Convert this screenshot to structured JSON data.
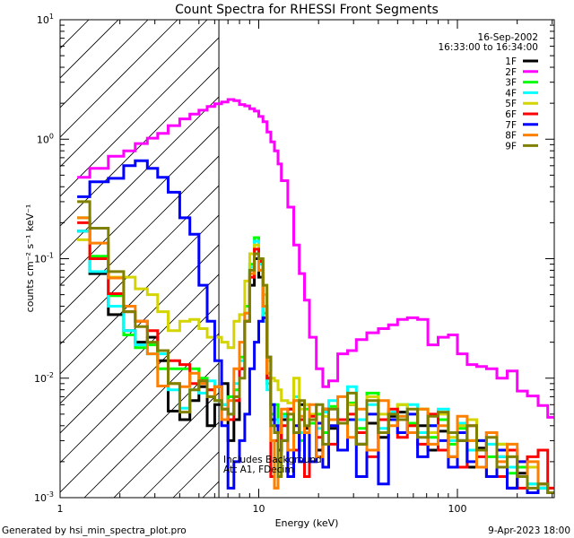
{
  "chart_data": {
    "type": "line",
    "title": "Count Spectra for RHESSI Front Segments",
    "xlabel": "Energy (keV)",
    "ylabel": "counts cm⁻² s⁻¹ keV⁻¹",
    "xscale": "log",
    "yscale": "log",
    "xlim": [
      1,
      305
    ],
    "ylim": [
      0.001,
      10
    ],
    "x_tick_labels": [
      {
        "value": 1,
        "label": "1"
      },
      {
        "value": 10,
        "label": "10"
      },
      {
        "value": 100,
        "label": "100"
      }
    ],
    "y_tick_labels": [
      {
        "value": 10,
        "base": "10",
        "exp": "1"
      },
      {
        "value": 1,
        "base": "10",
        "exp": "0"
      },
      {
        "value": 0.1,
        "base": "10",
        "exp": "-1"
      },
      {
        "value": 0.01,
        "base": "10",
        "exp": "-2"
      },
      {
        "value": 0.001,
        "base": "10",
        "exp": "-3"
      }
    ],
    "date": "16-Sep-2002",
    "time_range": "16:33:00 to 16:34:00",
    "legend_position": "top-right",
    "hatched_region_max_energy": 6.3,
    "annotations": [
      "Includes Background",
      "Att A1, FDecim"
    ],
    "energy_bin_edges": [
      1.22,
      1.41,
      1.75,
      2.09,
      2.39,
      2.75,
      3.1,
      3.5,
      4.0,
      4.5,
      5.0,
      5.5,
      6.0,
      6.5,
      7.0,
      7.5,
      8.0,
      8.5,
      9.0,
      9.5,
      10.0,
      10.5,
      11.0,
      11.5,
      12.0,
      12.5,
      13.0,
      14,
      15,
      16,
      17,
      18,
      19.5,
      21,
      22.5,
      25,
      28,
      31,
      35,
      40,
      45,
      50,
      56,
      63,
      71,
      80,
      90,
      100,
      112,
      125,
      140,
      158,
      178,
      200,
      225,
      255,
      285,
      305
    ],
    "series": [
      {
        "name": "1F",
        "color": "#000000",
        "values": [
          0.17,
          0.075,
          0.034,
          0.025,
          0.02,
          0.022,
          0.014,
          0.0053,
          0.0045,
          0.0065,
          0.0085,
          0.004,
          0.006,
          0.009,
          0.003,
          0.0045,
          0.012,
          0.03,
          0.06,
          0.1,
          0.07,
          0.03,
          0.01,
          0.0045,
          0.0035,
          0.0025,
          0.0045,
          0.0055,
          0.0025,
          0.006,
          0.0038,
          0.0045,
          0.0025,
          0.0055,
          0.0038,
          0.0045,
          0.006,
          0.0028,
          0.0042,
          0.0032,
          0.0048,
          0.0052,
          0.0035,
          0.004,
          0.0025,
          0.0036,
          0.0022,
          0.003,
          0.0018,
          0.0026,
          0.0015,
          0.0022,
          0.0012,
          0.0016,
          0.0011,
          0.0012,
          0.0011
        ]
      },
      {
        "name": "2F",
        "color": "#ff00ff",
        "values": [
          0.48,
          0.57,
          0.72,
          0.8,
          0.92,
          1.02,
          1.12,
          1.3,
          1.48,
          1.62,
          1.75,
          1.88,
          1.98,
          2.05,
          2.15,
          2.1,
          1.95,
          1.9,
          1.8,
          1.72,
          1.55,
          1.4,
          1.15,
          0.95,
          0.8,
          0.62,
          0.45,
          0.27,
          0.13,
          0.075,
          0.045,
          0.022,
          0.012,
          0.0085,
          0.0095,
          0.016,
          0.017,
          0.021,
          0.024,
          0.026,
          0.028,
          0.031,
          0.032,
          0.031,
          0.019,
          0.022,
          0.023,
          0.016,
          0.013,
          0.0125,
          0.012,
          0.01,
          0.0115,
          0.0078,
          0.0071,
          0.0059,
          0.0047
        ]
      },
      {
        "name": "3F",
        "color": "#00ff00",
        "values": [
          0.22,
          0.105,
          0.049,
          0.023,
          0.018,
          0.019,
          0.012,
          0.012,
          0.012,
          0.012,
          0.01,
          0.008,
          0.0065,
          0.006,
          0.007,
          0.008,
          0.015,
          0.04,
          0.09,
          0.15,
          0.1,
          0.035,
          0.009,
          0.005,
          0.006,
          0.0035,
          0.005,
          0.0045,
          0.0065,
          0.003,
          0.0055,
          0.0042,
          0.005,
          0.0035,
          0.0058,
          0.0045,
          0.0062,
          0.0038,
          0.0075,
          0.0045,
          0.005,
          0.006,
          0.0042,
          0.0055,
          0.0032,
          0.0045,
          0.0028,
          0.0038,
          0.003,
          0.0025,
          0.0022,
          0.0028,
          0.0016,
          0.0018,
          0.0013,
          0.0012,
          0.0011
        ]
      },
      {
        "name": "4F",
        "color": "#00ffff",
        "values": [
          0.17,
          0.078,
          0.04,
          0.025,
          0.019,
          0.016,
          0.016,
          0.008,
          0.0056,
          0.008,
          0.0075,
          0.0095,
          0.0085,
          0.006,
          0.005,
          0.009,
          0.014,
          0.035,
          0.085,
          0.14,
          0.09,
          0.03,
          0.008,
          0.006,
          0.0045,
          0.004,
          0.0048,
          0.0055,
          0.007,
          0.0035,
          0.006,
          0.0045,
          0.0038,
          0.0052,
          0.0065,
          0.0042,
          0.0085,
          0.0045,
          0.006,
          0.0038,
          0.0052,
          0.0048,
          0.006,
          0.0035,
          0.004,
          0.0055,
          0.003,
          0.0042,
          0.0025,
          0.003,
          0.0028,
          0.0022,
          0.0018,
          0.0015,
          0.0013,
          0.0012,
          0.0011
        ]
      },
      {
        "name": "5F",
        "color": "#d4d400",
        "values": [
          0.144,
          0.1,
          0.07,
          0.07,
          0.056,
          0.05,
          0.036,
          0.025,
          0.03,
          0.031,
          0.026,
          0.022,
          0.022,
          0.02,
          0.018,
          0.03,
          0.034,
          0.065,
          0.11,
          0.13,
          0.08,
          0.05,
          0.014,
          0.01,
          0.0095,
          0.008,
          0.0065,
          0.0062,
          0.01,
          0.0055,
          0.006,
          0.005,
          0.0042,
          0.0048,
          0.004,
          0.0045,
          0.006,
          0.0035,
          0.007,
          0.005,
          0.0045,
          0.006,
          0.004,
          0.0055,
          0.0035,
          0.005,
          0.0032,
          0.004,
          0.0045,
          0.003,
          0.0035,
          0.0028,
          0.0022,
          0.002,
          0.0018,
          0.0013,
          0.0012
        ]
      },
      {
        "name": "6F",
        "color": "#ff0000",
        "values": [
          0.2,
          0.1,
          0.051,
          0.036,
          0.03,
          0.025,
          0.017,
          0.014,
          0.013,
          0.009,
          0.0095,
          0.008,
          0.0085,
          0.0055,
          0.0045,
          0.0065,
          0.012,
          0.03,
          0.07,
          0.12,
          0.095,
          0.04,
          0.01,
          0.0015,
          0.003,
          0.002,
          0.004,
          0.0055,
          0.0025,
          0.0045,
          0.0015,
          0.0048,
          0.0032,
          0.0055,
          0.0028,
          0.0045,
          0.005,
          0.0035,
          0.0022,
          0.0045,
          0.0055,
          0.0032,
          0.004,
          0.0028,
          0.005,
          0.0025,
          0.0035,
          0.0018,
          0.004,
          0.0022,
          0.0035,
          0.0015,
          0.0025,
          0.0012,
          0.0022,
          0.0025,
          0.0012
        ]
      },
      {
        "name": "7F",
        "color": "#0000ff",
        "values": [
          0.33,
          0.44,
          0.47,
          0.6,
          0.66,
          0.57,
          0.48,
          0.36,
          0.22,
          0.16,
          0.06,
          0.03,
          0.014,
          0.004,
          0.0012,
          0.002,
          0.003,
          0.005,
          0.012,
          0.02,
          0.03,
          0.032,
          0.015,
          0.006,
          0.004,
          0.0025,
          0.003,
          0.0015,
          0.004,
          0.002,
          0.0035,
          0.002,
          0.0042,
          0.0018,
          0.004,
          0.0025,
          0.0045,
          0.0015,
          0.005,
          0.0013,
          0.0045,
          0.0035,
          0.005,
          0.0022,
          0.004,
          0.003,
          0.0018,
          0.0035,
          0.002,
          0.003,
          0.0015,
          0.0025,
          0.0012,
          0.002,
          0.0011,
          0.0013,
          0.0011
        ]
      },
      {
        "name": "8F",
        "color": "#ff8000",
        "values": [
          0.22,
          0.135,
          0.069,
          0.04,
          0.03,
          0.016,
          0.0086,
          0.009,
          0.0085,
          0.011,
          0.009,
          0.007,
          0.0085,
          0.0045,
          0.0065,
          0.012,
          0.02,
          0.035,
          0.075,
          0.11,
          0.08,
          0.04,
          0.011,
          0.003,
          0.0012,
          0.0035,
          0.0055,
          0.0025,
          0.0065,
          0.0048,
          0.0035,
          0.006,
          0.0022,
          0.0055,
          0.0045,
          0.007,
          0.0032,
          0.0055,
          0.0025,
          0.0065,
          0.004,
          0.0048,
          0.0035,
          0.0055,
          0.0028,
          0.004,
          0.0022,
          0.0048,
          0.003,
          0.0018,
          0.0035,
          0.002,
          0.0028,
          0.0015,
          0.002,
          0.0013,
          0.0011
        ]
      },
      {
        "name": "9F",
        "color": "#808000",
        "values": [
          0.3,
          0.18,
          0.078,
          0.036,
          0.027,
          0.02,
          0.017,
          0.009,
          0.0052,
          0.008,
          0.0095,
          0.007,
          0.0065,
          0.0055,
          0.005,
          0.007,
          0.01,
          0.03,
          0.08,
          0.11,
          0.1,
          0.06,
          0.015,
          0.004,
          0.0035,
          0.0015,
          0.003,
          0.005,
          0.0035,
          0.0065,
          0.004,
          0.0045,
          0.006,
          0.0028,
          0.0055,
          0.0042,
          0.0075,
          0.0028,
          0.0065,
          0.0035,
          0.005,
          0.0045,
          0.0055,
          0.0032,
          0.0048,
          0.0052,
          0.0035,
          0.003,
          0.004,
          0.0025,
          0.0032,
          0.0018,
          0.0022,
          0.0015,
          0.0012,
          0.0013,
          0.0011
        ]
      }
    ]
  },
  "footer": {
    "generated_by": "Generated by hsi_min_spectra_plot.pro",
    "timestamp": "9-Apr-2023 18:00"
  }
}
